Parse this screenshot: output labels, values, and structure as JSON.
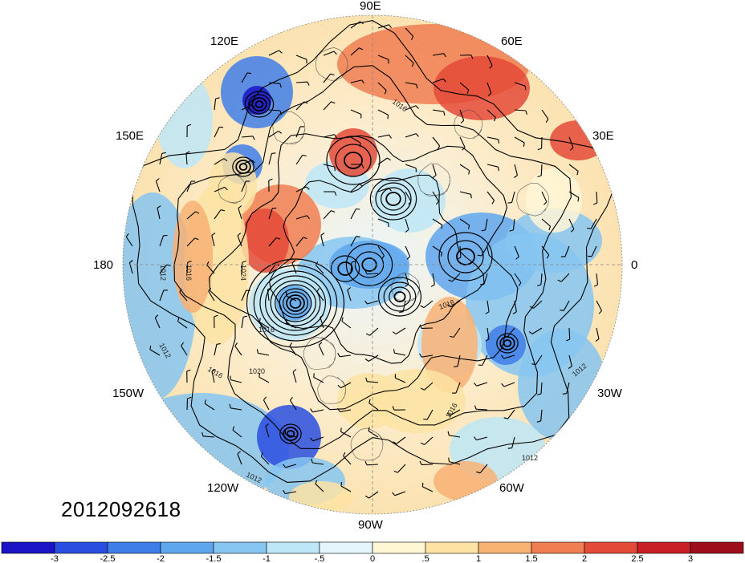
{
  "map": {
    "projection": "polar-stereographic",
    "hemisphere": "northern",
    "field": "anomaly",
    "timestamp": "2012092618",
    "longitude_labels": {
      "90E": "90E",
      "60E": "60E",
      "30E": "30E",
      "0": "0",
      "30W": "30W",
      "60W": "60W",
      "90W": "90W",
      "120W": "120W",
      "150W": "150W",
      "180": "180",
      "150E": "150E",
      "120E": "120E"
    },
    "contour_labels": [
      "1016",
      "1012",
      "1016",
      "1024",
      "1016",
      "1020",
      "1012",
      "1016",
      "1016",
      "1016",
      "1012",
      "1012",
      "1012"
    ],
    "colorbar": {
      "ticks": [
        "-3",
        "-2.5",
        "-2",
        "-1.5",
        "-1",
        "-.5",
        "0",
        ".5",
        "1",
        "1.5",
        "2",
        "2.5",
        "3"
      ],
      "colors": [
        "#1b14c4",
        "#2a4fe0",
        "#3f7ee8",
        "#5ea6ee",
        "#86c6f1",
        "#bde6f7",
        "#e4f6fb",
        "#fff6d6",
        "#fde3a3",
        "#f8b274",
        "#f07e52",
        "#e44a38",
        "#c81e26",
        "#9e0d1c"
      ]
    }
  }
}
